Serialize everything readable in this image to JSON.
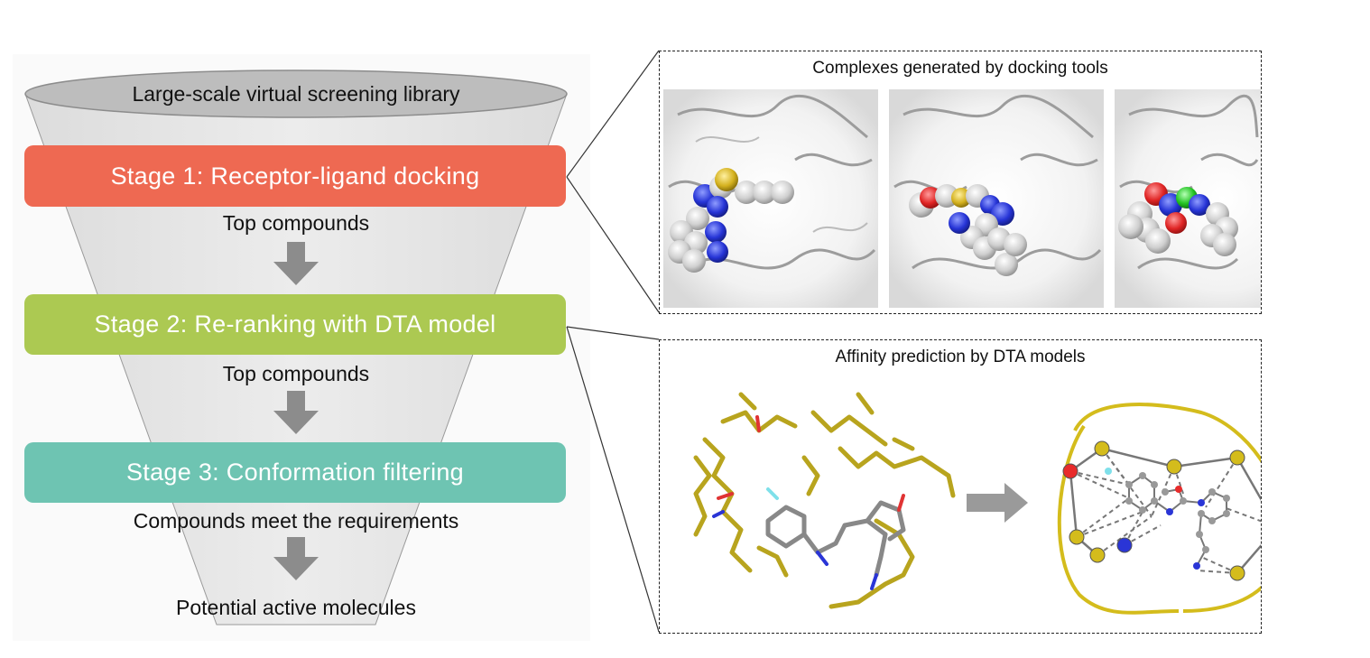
{
  "funnel": {
    "library_label": "Large-scale virtual screening library",
    "stages": [
      {
        "label": "Stage 1: Receptor-ligand docking",
        "color": "#ee6952"
      },
      {
        "label": "Stage 2: Re-ranking with DTA model",
        "color": "#acc952"
      },
      {
        "label": "Stage 3: Conformation filtering",
        "color": "#6ec4b2"
      }
    ],
    "between_labels": [
      "Top compounds",
      "Top compounds",
      "Compounds meet the requirements"
    ],
    "output_label": "Potential active molecules",
    "funnel_color": "#e8e8e8",
    "arrow_color": "#8c8c8c"
  },
  "docking_panel": {
    "title": "Complexes generated by docking tools"
  },
  "dta_panel": {
    "title": "Affinity prediction by DTA models",
    "graph_outline_color": "#d4bc1c"
  }
}
